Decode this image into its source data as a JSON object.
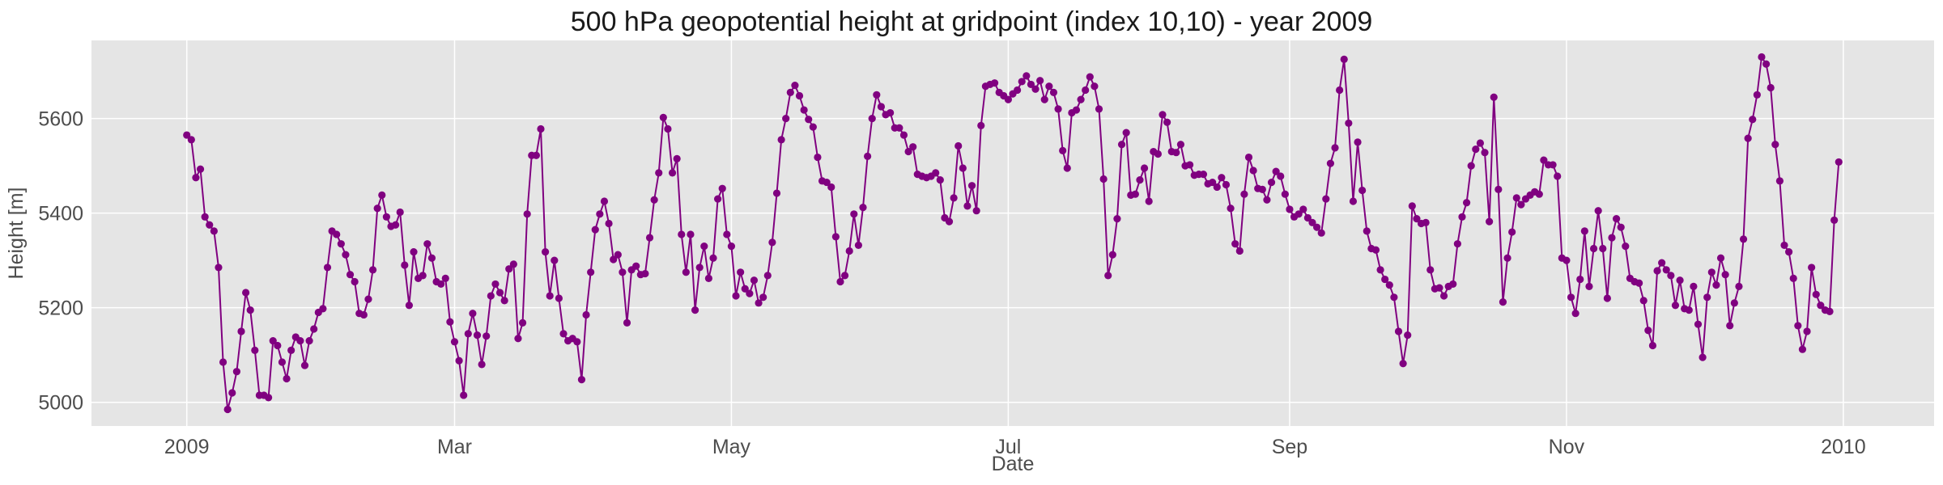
{
  "chart_data": {
    "type": "line",
    "title": "500 hPa geopotential height at gridpoint (index 10,10) - year 2009",
    "xlabel": "Date",
    "ylabel": "Height [m]",
    "x_ticks": [
      {
        "date": "2009-01-01",
        "label": "2009"
      },
      {
        "date": "2009-03-01",
        "label": "Mar"
      },
      {
        "date": "2009-05-01",
        "label": "May"
      },
      {
        "date": "2009-07-01",
        "label": "Jul"
      },
      {
        "date": "2009-09-01",
        "label": "Sep"
      },
      {
        "date": "2009-11-01",
        "label": "Nov"
      },
      {
        "date": "2010-01-01",
        "label": "2010"
      }
    ],
    "y_ticks": [
      5000,
      5200,
      5400,
      5600
    ],
    "xlim": [
      "2008-12-11",
      "2010-01-21"
    ],
    "ylim": [
      4950,
      5765
    ],
    "grid": true,
    "colors": {
      "line": "#800080",
      "plot_bg": "#e5e5e5",
      "grid": "#ffffff"
    },
    "series": [
      {
        "start_date": "2009-01-01",
        "step_days": 1,
        "values": [
          5565,
          5555,
          5475,
          5493,
          5392,
          5375,
          5362,
          5285,
          5085,
          4985,
          5020,
          5065,
          5150,
          5232,
          5195,
          5110,
          5015,
          5015,
          5010,
          5130,
          5120,
          5085,
          5050,
          5110,
          5138,
          5130,
          5078,
          5130,
          5155,
          5190,
          5198,
          5285,
          5362,
          5355,
          5335,
          5312,
          5270,
          5255,
          5188,
          5185,
          5218,
          5280,
          5410,
          5438,
          5392,
          5372,
          5375,
          5402,
          5290,
          5205,
          5318,
          5262,
          5268,
          5335,
          5305,
          5255,
          5250,
          5262,
          5170,
          5128,
          5088,
          5015,
          5145,
          5188,
          5142,
          5080,
          5140,
          5225,
          5250,
          5232,
          5215,
          5282,
          5292,
          5135,
          5168,
          5398,
          5522,
          5522,
          5578,
          5318,
          5225,
          5300,
          5220,
          5145,
          5130,
          5135,
          5128,
          5048,
          5185,
          5275,
          5365,
          5398,
          5425,
          5378,
          5302,
          5312,
          5275,
          5168,
          5280,
          5288,
          5270,
          5272,
          5348,
          5428,
          5485,
          5602,
          5578,
          5485,
          5515,
          5355,
          5275,
          5355,
          5195,
          5285,
          5330,
          5262,
          5305,
          5430,
          5452,
          5355,
          5330,
          5225,
          5275,
          5240,
          5230,
          5258,
          5210,
          5222,
          5268,
          5338,
          5442,
          5555,
          5600,
          5655,
          5670,
          5648,
          5618,
          5598,
          5582,
          5518,
          5468,
          5465,
          5455,
          5350,
          5255,
          5268,
          5320,
          5398,
          5332,
          5412,
          5520,
          5600,
          5650,
          5625,
          5608,
          5612,
          5580,
          5580,
          5565,
          5530,
          5540,
          5482,
          5478,
          5475,
          5478,
          5485,
          5470,
          5390,
          5382,
          5432,
          5542,
          5495,
          5415,
          5458,
          5405,
          5585,
          5668,
          5672,
          5675,
          5655,
          5648,
          5640,
          5652,
          5660,
          5678,
          5690,
          5672,
          5662,
          5680,
          5640,
          5668,
          5655,
          5620,
          5532,
          5495,
          5612,
          5618,
          5640,
          5660,
          5688,
          5668,
          5620,
          5472,
          5268,
          5312,
          5388,
          5545,
          5570,
          5438,
          5440,
          5470,
          5495,
          5425,
          5530,
          5525,
          5608,
          5592,
          5530,
          5528,
          5545,
          5500,
          5502,
          5480,
          5482,
          5482,
          5462,
          5465,
          5455,
          5475,
          5460,
          5410,
          5335,
          5320,
          5440,
          5518,
          5490,
          5452,
          5450,
          5428,
          5465,
          5488,
          5478,
          5440,
          5408,
          5392,
          5398,
          5408,
          5390,
          5380,
          5370,
          5358,
          5430,
          5505,
          5538,
          5660,
          5725,
          5590,
          5425,
          5550,
          5448,
          5362,
          5325,
          5322,
          5280,
          5260,
          5248,
          5222,
          5150,
          5082,
          5142,
          5415,
          5388,
          5378,
          5380,
          5280,
          5240,
          5242,
          5225,
          5245,
          5250,
          5335,
          5392,
          5422,
          5500,
          5535,
          5548,
          5528,
          5382,
          5645,
          5450,
          5212,
          5305,
          5360,
          5432,
          5418,
          5430,
          5438,
          5445,
          5440,
          5512,
          5502,
          5502,
          5478,
          5305,
          5300,
          5222,
          5188,
          5260,
          5362,
          5245,
          5325,
          5405,
          5325,
          5220,
          5348,
          5388,
          5370,
          5330,
          5262,
          5255,
          5252,
          5215,
          5152,
          5120,
          5278,
          5295,
          5280,
          5268,
          5205,
          5258,
          5198,
          5195,
          5245,
          5165,
          5095,
          5222,
          5275,
          5248,
          5305,
          5270,
          5162,
          5210,
          5245,
          5345,
          5558,
          5598,
          5650,
          5730,
          5715,
          5665,
          5545,
          5468,
          5332,
          5318,
          5262,
          5162,
          5112,
          5150,
          5285,
          5228,
          5205,
          5195,
          5192,
          5385,
          5508
        ]
      }
    ]
  }
}
